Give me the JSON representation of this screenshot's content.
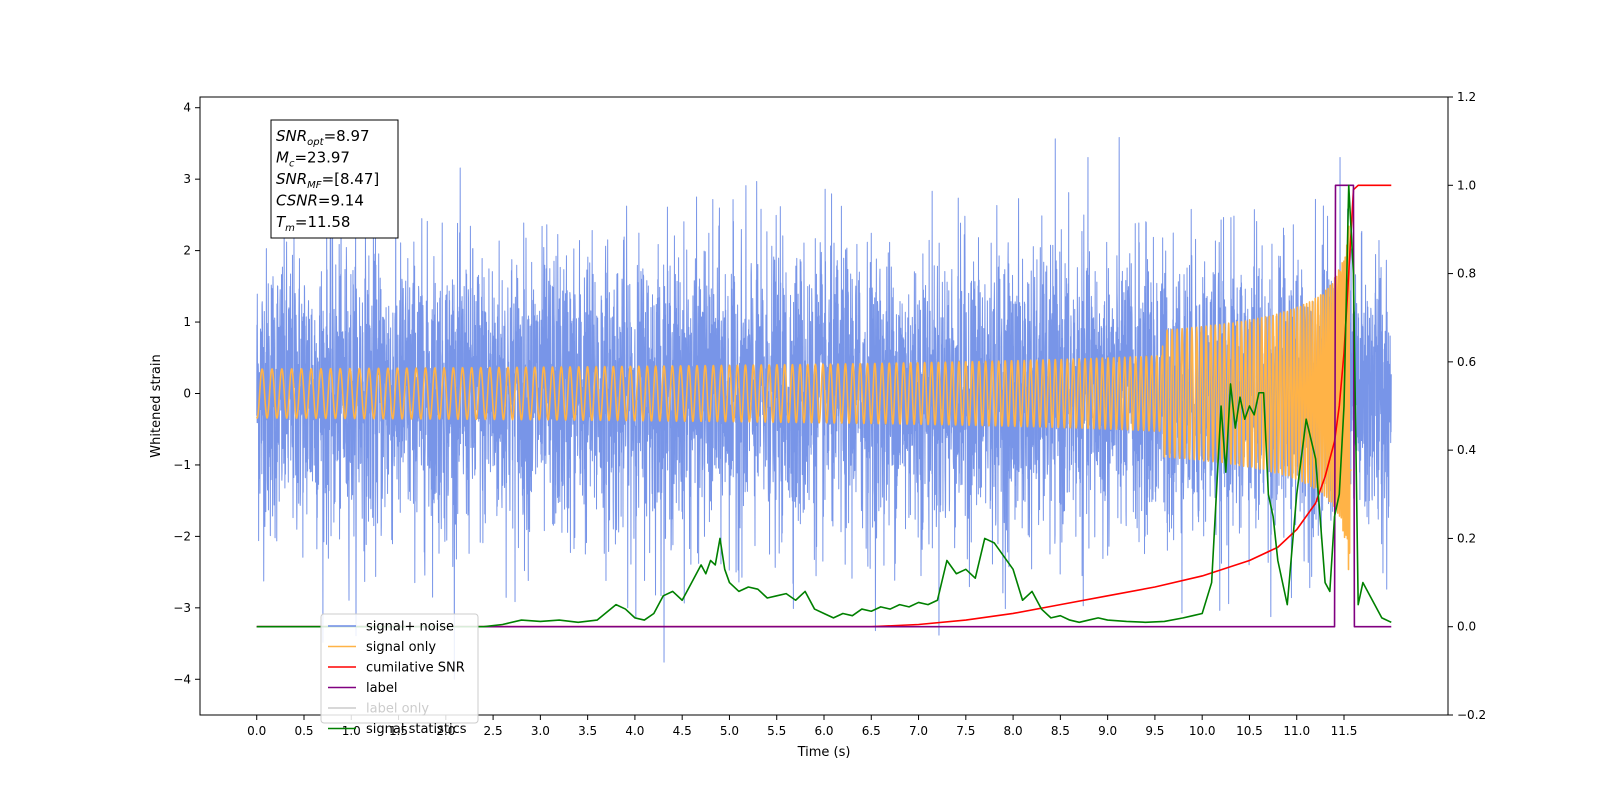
{
  "chart_data": {
    "type": "line",
    "title": "",
    "xlabel": "Time (s)",
    "ylabel": "Whitened strain",
    "xlim": [
      -0.6,
      12.6
    ],
    "ylim": [
      -4.5,
      4.15
    ],
    "y2lim": [
      -0.2,
      1.2
    ],
    "x_ticks": [
      "0.0",
      "0.5",
      "1.0",
      "1.5",
      "2.0",
      "2.5",
      "3.0",
      "3.5",
      "4.0",
      "4.5",
      "5.0",
      "5.5",
      "6.0",
      "6.5",
      "7.0",
      "7.5",
      "8.0",
      "8.5",
      "9.0",
      "9.5",
      "10.0",
      "10.5",
      "11.0",
      "11.5"
    ],
    "y_ticks": [
      "−4",
      "−3",
      "−2",
      "−1",
      "0",
      "1",
      "2",
      "3",
      "4"
    ],
    "y2_ticks": [
      "−0.2",
      "0.0",
      "0.2",
      "0.4",
      "0.6",
      "0.8",
      "1.0",
      "1.2"
    ],
    "grid": false,
    "legend_position": "lower-left",
    "annotation": {
      "lines": [
        {
          "base": "SNR",
          "sub": "opt",
          "value": "=8.97"
        },
        {
          "base": "M",
          "sub": "c",
          "value": "=23.97"
        },
        {
          "base": "SNR",
          "sub": "MF",
          "value": "=[8.47]"
        },
        {
          "base": "CSNR",
          "sub": "",
          "value": "=9.14"
        },
        {
          "base": "T",
          "sub": "m",
          "value": "=11.58"
        }
      ]
    },
    "series": [
      {
        "name": "signal+ noise",
        "color": "#6d8ce6",
        "axis": "left",
        "kind": "noise",
        "x_range": [
          0.0,
          12.0
        ],
        "std": 1.0
      },
      {
        "name": "signal only",
        "color": "#ffb347",
        "axis": "left",
        "kind": "chirp",
        "x_range": [
          0.0,
          11.58
        ],
        "peak_amplitude": 2.8,
        "peak_time": 11.58
      },
      {
        "name": "cumilative SNR",
        "color": "#ff0000",
        "axis": "right",
        "x": [
          0.0,
          6.5,
          7.0,
          7.5,
          8.0,
          8.5,
          9.0,
          9.5,
          10.0,
          10.5,
          10.8,
          11.0,
          11.2,
          11.3,
          11.4,
          11.45,
          11.5,
          11.55,
          11.6,
          11.65,
          12.0
        ],
        "y": [
          0.0,
          0.0,
          0.005,
          0.015,
          0.03,
          0.05,
          0.07,
          0.09,
          0.115,
          0.15,
          0.18,
          0.22,
          0.28,
          0.34,
          0.42,
          0.5,
          0.62,
          0.8,
          0.99,
          1.0,
          1.0
        ]
      },
      {
        "name": "label",
        "color": "#800080",
        "axis": "right",
        "x": [
          0.0,
          11.4,
          11.41,
          11.6,
          11.61,
          12.0
        ],
        "y": [
          0.0,
          0.0,
          1.0,
          1.0,
          0.0,
          0.0
        ]
      },
      {
        "name": "label only",
        "color": "#cccccc",
        "axis": "right",
        "kind": "legend-only"
      },
      {
        "name": "signal statistics",
        "color": "#008000",
        "axis": "right",
        "x": [
          0.0,
          2.4,
          2.6,
          2.8,
          3.0,
          3.2,
          3.4,
          3.6,
          3.8,
          3.9,
          4.0,
          4.1,
          4.2,
          4.3,
          4.4,
          4.5,
          4.6,
          4.7,
          4.75,
          4.8,
          4.85,
          4.9,
          4.95,
          5.0,
          5.1,
          5.2,
          5.3,
          5.4,
          5.5,
          5.6,
          5.7,
          5.8,
          5.9,
          6.0,
          6.1,
          6.2,
          6.3,
          6.4,
          6.5,
          6.6,
          6.7,
          6.8,
          6.9,
          7.0,
          7.1,
          7.2,
          7.3,
          7.4,
          7.5,
          7.6,
          7.7,
          7.8,
          7.9,
          8.0,
          8.1,
          8.2,
          8.3,
          8.4,
          8.5,
          8.6,
          8.7,
          8.8,
          8.9,
          9.0,
          9.2,
          9.4,
          9.6,
          9.8,
          9.9,
          10.0,
          10.1,
          10.2,
          10.25,
          10.3,
          10.35,
          10.4,
          10.45,
          10.5,
          10.55,
          10.6,
          10.65,
          10.7,
          10.75,
          10.8,
          10.9,
          11.0,
          11.1,
          11.2,
          11.3,
          11.35,
          11.4,
          11.45,
          11.5,
          11.55,
          11.6,
          11.65,
          11.7,
          11.8,
          11.9,
          12.0
        ],
        "y": [
          0.0,
          0.0,
          0.005,
          0.015,
          0.012,
          0.015,
          0.01,
          0.015,
          0.05,
          0.04,
          0.02,
          0.015,
          0.03,
          0.07,
          0.08,
          0.06,
          0.1,
          0.14,
          0.12,
          0.15,
          0.14,
          0.2,
          0.13,
          0.1,
          0.08,
          0.09,
          0.085,
          0.065,
          0.07,
          0.075,
          0.06,
          0.08,
          0.04,
          0.03,
          0.02,
          0.03,
          0.025,
          0.04,
          0.035,
          0.045,
          0.04,
          0.05,
          0.045,
          0.055,
          0.05,
          0.06,
          0.15,
          0.12,
          0.13,
          0.11,
          0.2,
          0.19,
          0.16,
          0.13,
          0.06,
          0.08,
          0.04,
          0.02,
          0.025,
          0.015,
          0.01,
          0.015,
          0.02,
          0.015,
          0.012,
          0.01,
          0.012,
          0.02,
          0.025,
          0.03,
          0.1,
          0.5,
          0.35,
          0.55,
          0.45,
          0.52,
          0.47,
          0.5,
          0.48,
          0.53,
          0.53,
          0.3,
          0.25,
          0.15,
          0.05,
          0.3,
          0.47,
          0.38,
          0.1,
          0.08,
          0.25,
          0.3,
          0.5,
          1.0,
          0.8,
          0.05,
          0.1,
          0.06,
          0.02,
          0.01
        ]
      }
    ]
  }
}
